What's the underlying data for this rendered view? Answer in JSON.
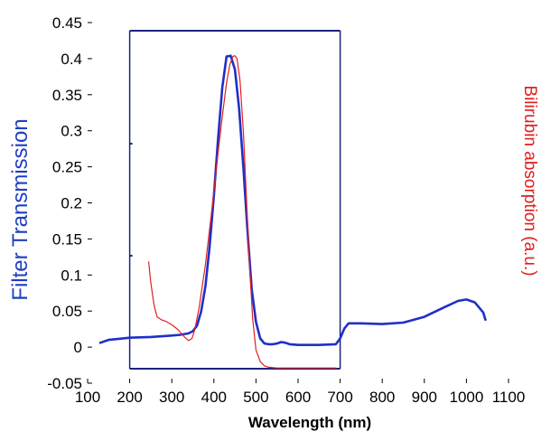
{
  "chart_data": {
    "type": "line",
    "xlabel": "Wavelength (nm)",
    "ylabel": "Filter Transmission",
    "ylabel_right": "Bilirubin absorption (a.u.)",
    "xlim": [
      100,
      1100
    ],
    "ylim": [
      -0.05,
      0.45
    ],
    "x_ticks": [
      "100",
      "200",
      "300",
      "400",
      "500",
      "600",
      "700",
      "800",
      "900",
      "1000",
      "1100"
    ],
    "y_ticks": [
      "-0.05",
      "0",
      "0.05",
      "0.1",
      "0.15",
      "0.2",
      "0.25",
      "0.3",
      "0.35",
      "0.4",
      "0.45"
    ],
    "inset_axes": {
      "xlim": [
        200,
        700
      ]
    },
    "colors": {
      "filter": "#1f2fc8",
      "bilirubin": "#e02020",
      "frame": "#1a237e"
    },
    "series": [
      {
        "x": [
          130,
          150,
          200,
          250,
          300,
          320,
          340,
          350,
          360,
          370,
          380,
          390,
          400,
          410,
          420,
          430,
          440,
          450,
          460,
          470,
          480,
          490,
          500,
          510,
          520,
          530,
          540,
          550,
          560,
          570,
          580,
          600,
          650,
          690,
          700,
          710,
          720,
          750,
          800,
          850,
          900,
          950,
          980,
          1000,
          1020,
          1040,
          1045
        ],
        "y": [
          0.006,
          0.01,
          0.013,
          0.014,
          0.016,
          0.017,
          0.019,
          0.022,
          0.03,
          0.05,
          0.085,
          0.14,
          0.21,
          0.29,
          0.36,
          0.403,
          0.404,
          0.385,
          0.33,
          0.25,
          0.16,
          0.08,
          0.035,
          0.012,
          0.005,
          0.004,
          0.004,
          0.005,
          0.007,
          0.006,
          0.004,
          0.003,
          0.003,
          0.004,
          0.012,
          0.026,
          0.033,
          0.033,
          0.032,
          0.034,
          0.042,
          0.056,
          0.064,
          0.066,
          0.062,
          0.048,
          0.038
        ]
      },
      {
        "x": [
          245,
          250,
          258,
          265,
          275,
          285,
          300,
          315,
          330,
          340,
          348,
          355,
          365,
          380,
          395,
          410,
          420,
          430,
          438,
          445,
          450,
          455,
          462,
          470,
          478,
          485,
          492,
          500,
          510,
          520,
          530,
          550,
          600,
          650,
          690
        ],
        "y": [
          0.118,
          0.09,
          0.058,
          0.042,
          0.038,
          0.036,
          0.031,
          0.024,
          0.014,
          0.009,
          0.012,
          0.025,
          0.055,
          0.115,
          0.19,
          0.27,
          0.32,
          0.366,
          0.392,
          0.403,
          0.404,
          0.4,
          0.37,
          0.3,
          0.2,
          0.11,
          0.04,
          -0.004,
          -0.02,
          -0.026,
          -0.028,
          -0.029,
          -0.029,
          -0.029,
          -0.029
        ]
      }
    ]
  }
}
